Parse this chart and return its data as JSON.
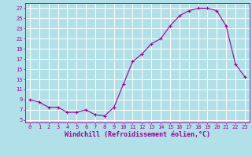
{
  "hours": [
    0,
    1,
    2,
    3,
    4,
    5,
    6,
    7,
    8,
    9,
    10,
    11,
    12,
    13,
    14,
    15,
    16,
    17,
    18,
    19,
    20,
    21,
    22,
    23
  ],
  "values": [
    9.0,
    8.5,
    7.5,
    7.5,
    6.5,
    6.5,
    7.0,
    6.0,
    5.8,
    7.5,
    12.0,
    16.5,
    18.0,
    20.0,
    21.0,
    23.5,
    25.5,
    26.5,
    27.0,
    27.0,
    26.5,
    23.5,
    16.0,
    13.5
  ],
  "line_color": "#990099",
  "marker": "+",
  "bg_color": "#b2e0e8",
  "grid_color": "#ffffff",
  "ylabel_ticks": [
    5,
    7,
    9,
    11,
    13,
    15,
    17,
    19,
    21,
    23,
    25,
    27
  ],
  "ylim": [
    4.5,
    28.0
  ],
  "xlim": [
    -0.5,
    23.5
  ],
  "xlabel": "Windchill (Refroidissement éolien,°C)",
  "xlabel_color": "#990099",
  "tick_color": "#990099",
  "tick_fontsize": 5.0,
  "xlabel_fontsize": 6.0
}
